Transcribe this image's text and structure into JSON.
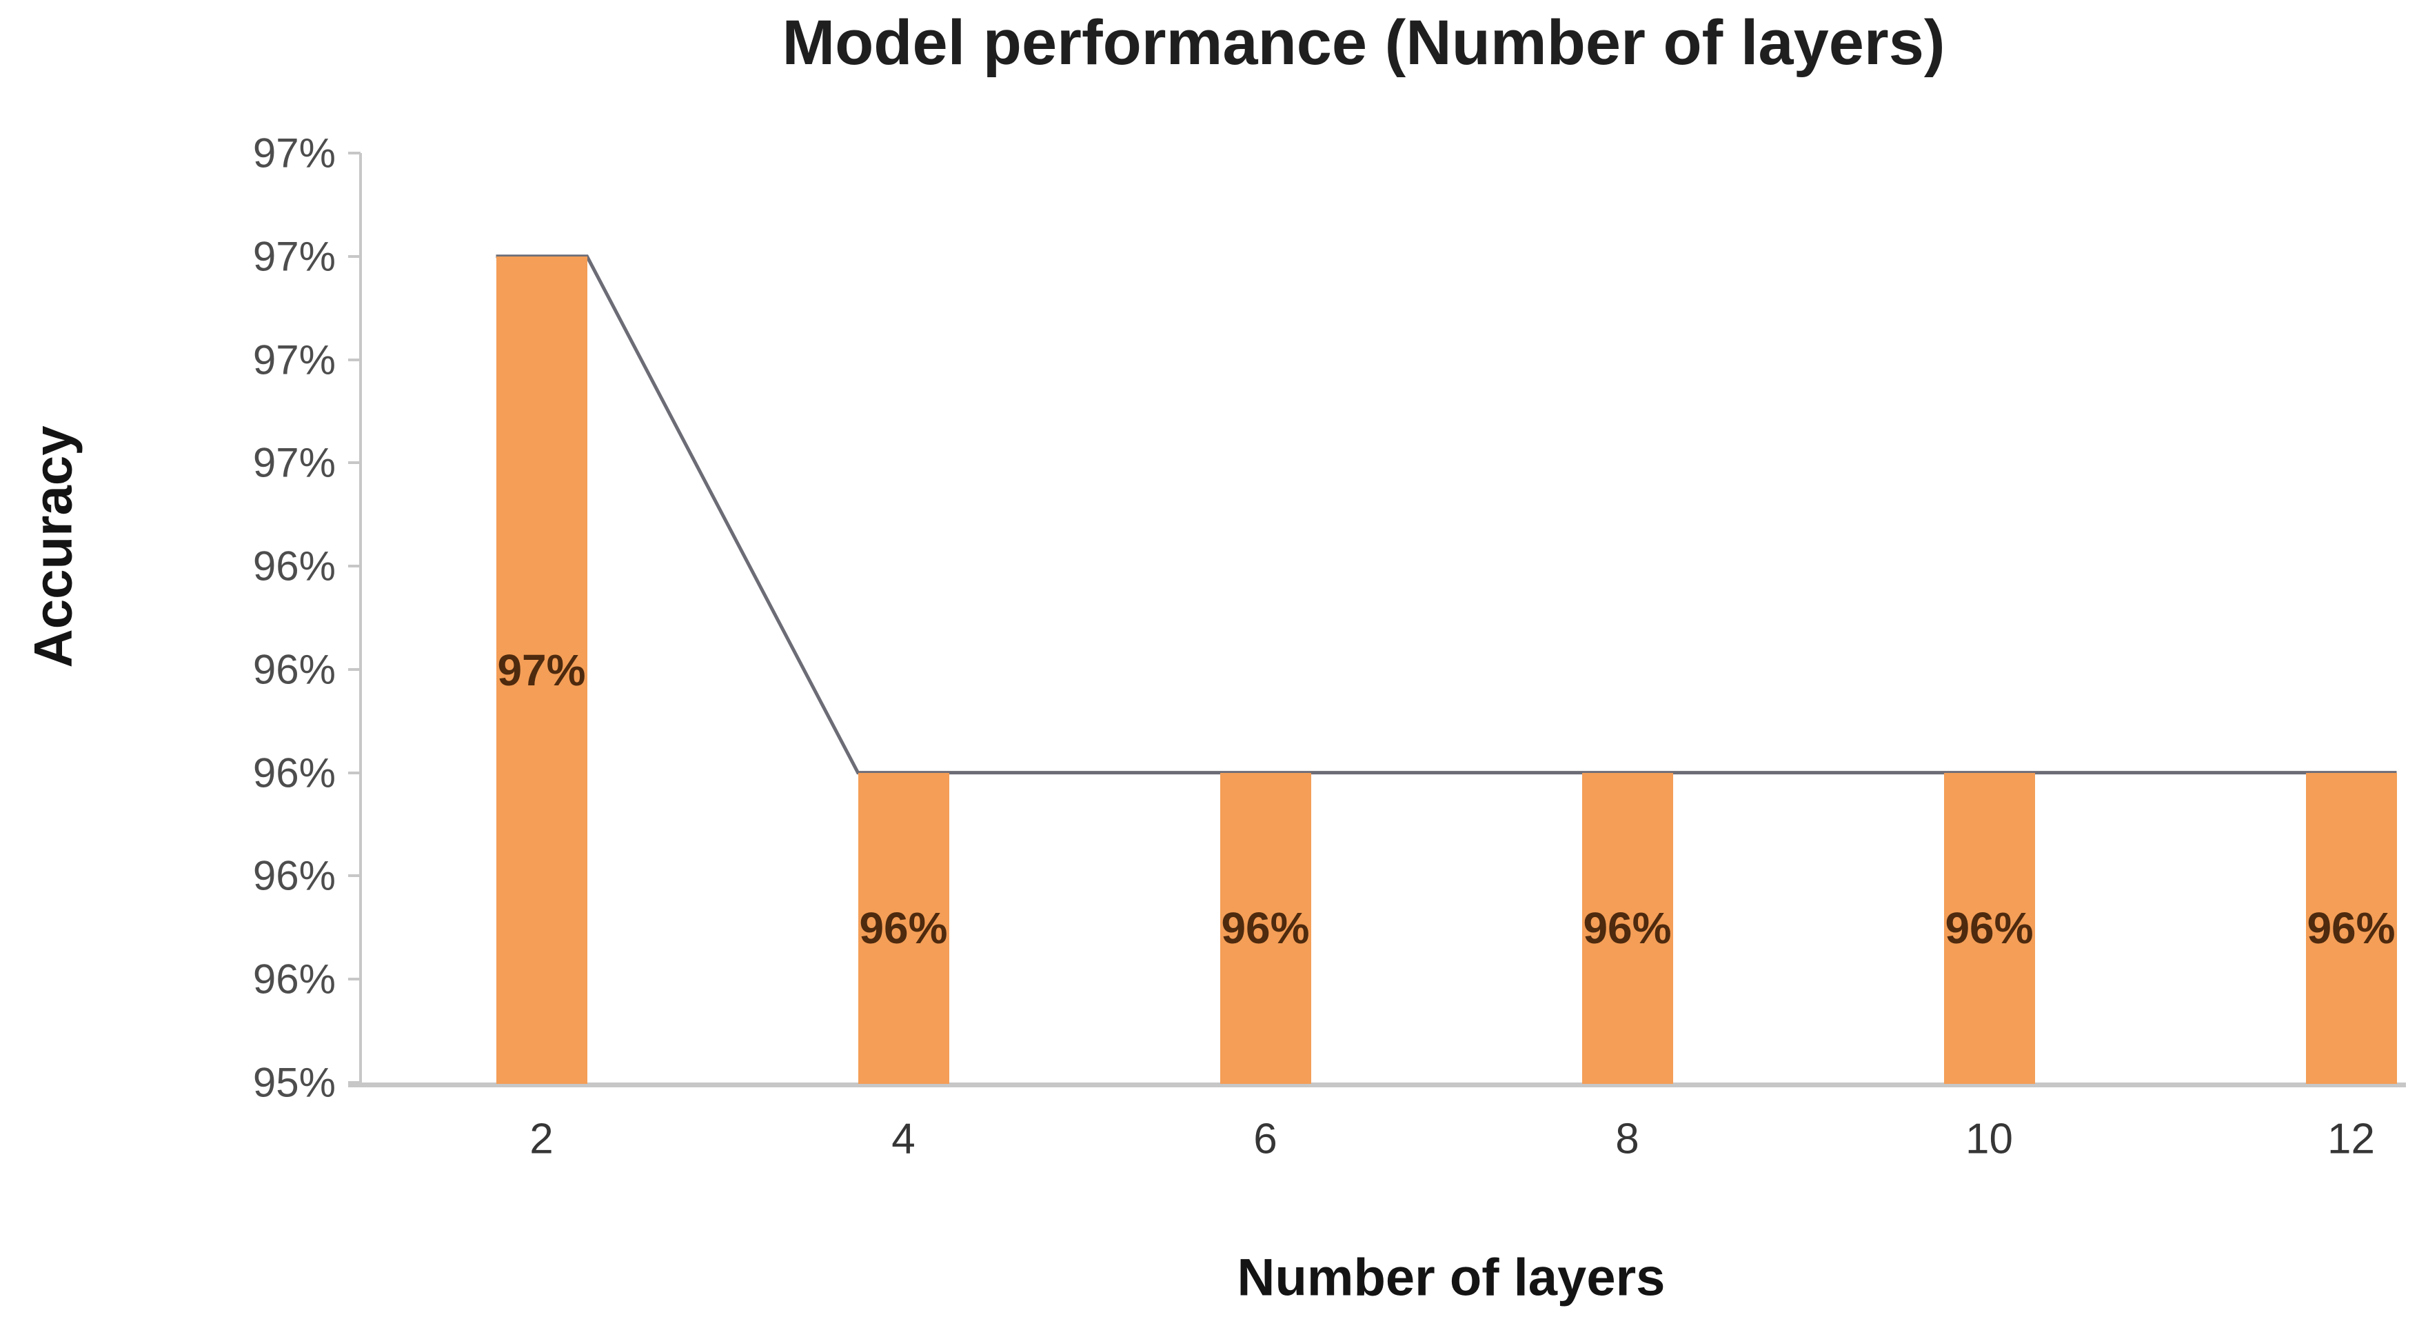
{
  "colors": {
    "background": "#FFFFFF",
    "bar": "#F49E57",
    "bar_label_text": "#4E2A0E",
    "connector_line": "#6C6C76",
    "axis_line": "#C7C7C7",
    "y_tick_text": "#4D4D4D",
    "x_tick_text": "#363636",
    "title_text": "#1F1F1F",
    "axis_title_text": "#141414"
  },
  "chart_data": {
    "type": "bar",
    "title": "Model performance (Number of layers)",
    "xlabel": "Number of layers",
    "ylabel": "Accuracy",
    "categories": [
      "2",
      "4",
      "6",
      "8",
      "10",
      "12"
    ],
    "values": [
      97,
      96,
      96,
      96,
      96,
      96
    ],
    "bar_labels": [
      "97%",
      "96%",
      "96%",
      "96%",
      "96%",
      "96%"
    ],
    "ylim": [
      95.4,
      97.2
    ],
    "ytick_step": 0.2,
    "ytick_labels_top_to_bottom": [
      "97%",
      "97%",
      "97%",
      "97%",
      "96%",
      "96%",
      "96%",
      "96%",
      "96%",
      "95%"
    ],
    "xtick_labels": [
      "2",
      "4",
      "6",
      "8",
      "10",
      "12"
    ],
    "grid": false,
    "legend": false,
    "overlay_line": {
      "type": "line",
      "description": "gray line connecting the tops of adjacent bars corner-to-corner",
      "values": [
        97,
        96,
        96,
        96,
        96,
        96
      ],
      "color": "#6C6C76"
    }
  }
}
